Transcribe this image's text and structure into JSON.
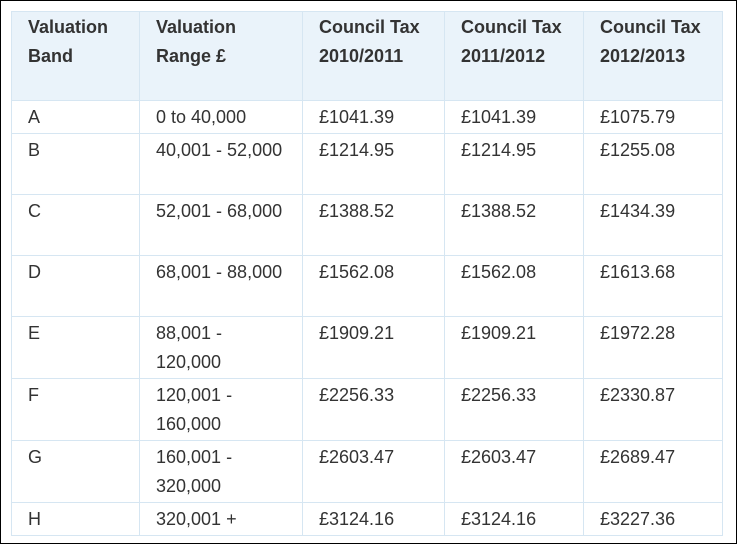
{
  "columns": [
    "Valuation Band",
    "Valuation Range £",
    "Council Tax 2010/2011",
    "Council Tax 2011/2012",
    "Council Tax 2012/2013"
  ],
  "rows": [
    [
      "A",
      "0 to 40,000",
      "£1041.39",
      "£1041.39",
      "£1075.79"
    ],
    [
      "B",
      "40,001 - 52,000",
      "£1214.95",
      "£1214.95",
      "£1255.08"
    ],
    [
      "C",
      "52,001 - 68,000",
      "£1388.52",
      "£1388.52",
      "£1434.39"
    ],
    [
      "D",
      "68,001 - 88,000",
      "£1562.08",
      "£1562.08",
      "£1613.68"
    ],
    [
      "E",
      "88,001 - 120,000",
      "£1909.21",
      "£1909.21",
      "£1972.28"
    ],
    [
      "F",
      "120,001 - 160,000",
      "£2256.33",
      "£2256.33",
      "£2330.87"
    ],
    [
      "G",
      "160,001 - 320,000",
      "£2603.47",
      "£2603.47",
      "£2689.47"
    ],
    [
      "H",
      "320,001 +",
      "£3124.16",
      "£3124.16",
      "£3227.36"
    ]
  ]
}
